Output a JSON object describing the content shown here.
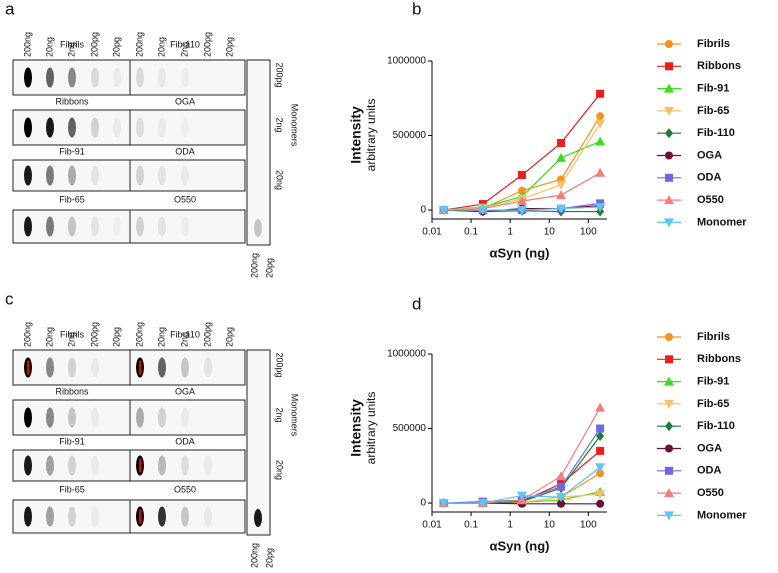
{
  "panel_labels": [
    "a",
    "b",
    "c",
    "d"
  ],
  "blots": [
    {
      "lanes": [
        "200ng",
        "20ng",
        "2ng",
        "200pg",
        "20pg",
        "200ng",
        "20ng",
        "2ng",
        "200pg",
        "20pg"
      ],
      "rows": [
        [
          "Fibrils",
          "Fib-110"
        ],
        [
          "Ribbons",
          "OGA"
        ],
        [
          "Fib-91",
          "ODA"
        ],
        [
          "Fib-65",
          "O550"
        ]
      ],
      "monomer_lanes": [
        "200pg",
        "2ng",
        "20ng"
      ],
      "monomer_label": "Monomers",
      "monomer_bottom": [
        "200ng",
        "20pg"
      ]
    },
    {
      "lanes": [
        "200ng",
        "20ng",
        "2ng",
        "200pg",
        "20pg",
        "200ng",
        "20ng",
        "2ng",
        "200pg",
        "20pg"
      ],
      "rows": [
        [
          "Fibrils",
          "Fib-110"
        ],
        [
          "Ribbons",
          "OGA"
        ],
        [
          "Fib-91",
          "ODA"
        ],
        [
          "Fib-65",
          "O550"
        ]
      ],
      "monomer_lanes": [
        "200pg",
        "2ng",
        "20ng"
      ],
      "monomer_label": "Monomers",
      "monomer_bottom": [
        "200ng",
        "20pg"
      ]
    }
  ],
  "chart_data": [
    {
      "type": "line",
      "x_scale": "log",
      "ylabel": [
        "Intensity",
        "arbitrary units"
      ],
      "xlabel": "αSyn (ng)",
      "x": [
        0.02,
        0.2,
        2,
        20,
        200
      ],
      "xlim": [
        0.01,
        300
      ],
      "xticks": [
        0.01,
        0.1,
        1,
        10,
        100
      ],
      "ylim": [
        -60000,
        1000000
      ],
      "yticks": [
        0,
        500000,
        1000000
      ],
      "series": [
        {
          "name": "Fibrils",
          "color": "#f7931e",
          "marker": "circle",
          "values": [
            0,
            10000,
            130000,
            205000,
            630000
          ]
        },
        {
          "name": "Ribbons",
          "color": "#ee1c1c",
          "marker": "square",
          "values": [
            0,
            40000,
            235000,
            450000,
            780000
          ]
        },
        {
          "name": "Fib-91",
          "color": "#3ddc1e",
          "marker": "triangle-up",
          "values": [
            0,
            20000,
            90000,
            350000,
            460000
          ]
        },
        {
          "name": "Fib-65",
          "color": "#f5c26b",
          "marker": "triangle-down",
          "values": [
            0,
            15000,
            75000,
            170000,
            580000
          ]
        },
        {
          "name": "Fib-110",
          "color": "#1e7b3a",
          "marker": "diamond",
          "values": [
            0,
            -10000,
            -5000,
            -10000,
            -10000
          ]
        },
        {
          "name": "OGA",
          "color": "#6b0f3a",
          "marker": "circle",
          "values": [
            0,
            -10000,
            10000,
            10000,
            30000
          ]
        },
        {
          "name": "ODA",
          "color": "#6a6ae8",
          "marker": "square",
          "values": [
            0,
            0,
            0,
            10000,
            45000
          ]
        },
        {
          "name": "O550",
          "color": "#f47c7c",
          "marker": "triangle-up",
          "values": [
            0,
            10000,
            60000,
            100000,
            250000
          ]
        },
        {
          "name": "Monomer",
          "color": "#5bc8f0",
          "marker": "triangle-down",
          "values": [
            0,
            0,
            0,
            10000,
            20000
          ]
        }
      ]
    },
    {
      "type": "line",
      "x_scale": "log",
      "ylabel": [
        "Intensity",
        "arbitrary units"
      ],
      "xlabel": "αSyn (ng)",
      "x": [
        0.02,
        0.2,
        2,
        20,
        200
      ],
      "xlim": [
        0.01,
        300
      ],
      "xticks": [
        0.01,
        0.1,
        1,
        10,
        100
      ],
      "ylim": [
        -60000,
        1000000
      ],
      "yticks": [
        0,
        500000,
        1000000
      ],
      "series": [
        {
          "name": "Fibrils",
          "color": "#f7931e",
          "marker": "circle",
          "values": [
            0,
            0,
            5000,
            40000,
            200000
          ]
        },
        {
          "name": "Ribbons",
          "color": "#ee1c1c",
          "marker": "square",
          "values": [
            0,
            0,
            10000,
            130000,
            350000
          ]
        },
        {
          "name": "Fib-91",
          "color": "#3ddc1e",
          "marker": "triangle-up",
          "values": [
            0,
            0,
            5000,
            20000,
            75000
          ]
        },
        {
          "name": "Fib-65",
          "color": "#f5c26b",
          "marker": "triangle-down",
          "values": [
            0,
            0,
            5000,
            40000,
            60000
          ]
        },
        {
          "name": "Fib-110",
          "color": "#1e7b3a",
          "marker": "diamond",
          "values": [
            0,
            0,
            10000,
            100000,
            450000
          ]
        },
        {
          "name": "OGA",
          "color": "#6b0f3a",
          "marker": "circle",
          "values": [
            0,
            0,
            -5000,
            -5000,
            -5000
          ]
        },
        {
          "name": "ODA",
          "color": "#6a6ae8",
          "marker": "square",
          "values": [
            0,
            10000,
            20000,
            110000,
            500000
          ]
        },
        {
          "name": "O550",
          "color": "#f47c7c",
          "marker": "triangle-up",
          "values": [
            0,
            0,
            20000,
            180000,
            640000
          ]
        },
        {
          "name": "Monomer",
          "color": "#5bc8f0",
          "marker": "triangle-down",
          "values": [
            0,
            0,
            50000,
            40000,
            240000
          ]
        }
      ]
    }
  ]
}
